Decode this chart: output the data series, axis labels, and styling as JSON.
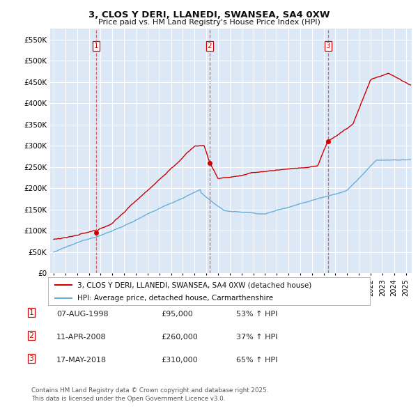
{
  "title": "3, CLOS Y DERI, LLANEDI, SWANSEA, SA4 0XW",
  "subtitle": "Price paid vs. HM Land Registry's House Price Index (HPI)",
  "background_color": "#ffffff",
  "plot_bg_color": "#dce8f5",
  "grid_color": "#ffffff",
  "red_color": "#cc0000",
  "blue_color": "#6aaed6",
  "ylim": [
    0,
    575000
  ],
  "yticks": [
    0,
    50000,
    100000,
    150000,
    200000,
    250000,
    300000,
    350000,
    400000,
    450000,
    500000,
    550000
  ],
  "xlim_start": 1994.7,
  "xlim_end": 2025.5,
  "sale1_date": 1998.6,
  "sale1_price": 95000,
  "sale2_date": 2008.28,
  "sale2_price": 260000,
  "sale3_date": 2018.37,
  "sale3_price": 310000,
  "legend_label_red": "3, CLOS Y DERI, LLANEDI, SWANSEA, SA4 0XW (detached house)",
  "legend_label_blue": "HPI: Average price, detached house, Carmarthenshire",
  "table_data": [
    [
      "1",
      "07-AUG-1998",
      "£95,000",
      "53% ↑ HPI"
    ],
    [
      "2",
      "11-APR-2008",
      "£260,000",
      "37% ↑ HPI"
    ],
    [
      "3",
      "17-MAY-2018",
      "£310,000",
      "65% ↑ HPI"
    ]
  ],
  "footnote": "Contains HM Land Registry data © Crown copyright and database right 2025.\nThis data is licensed under the Open Government Licence v3.0."
}
